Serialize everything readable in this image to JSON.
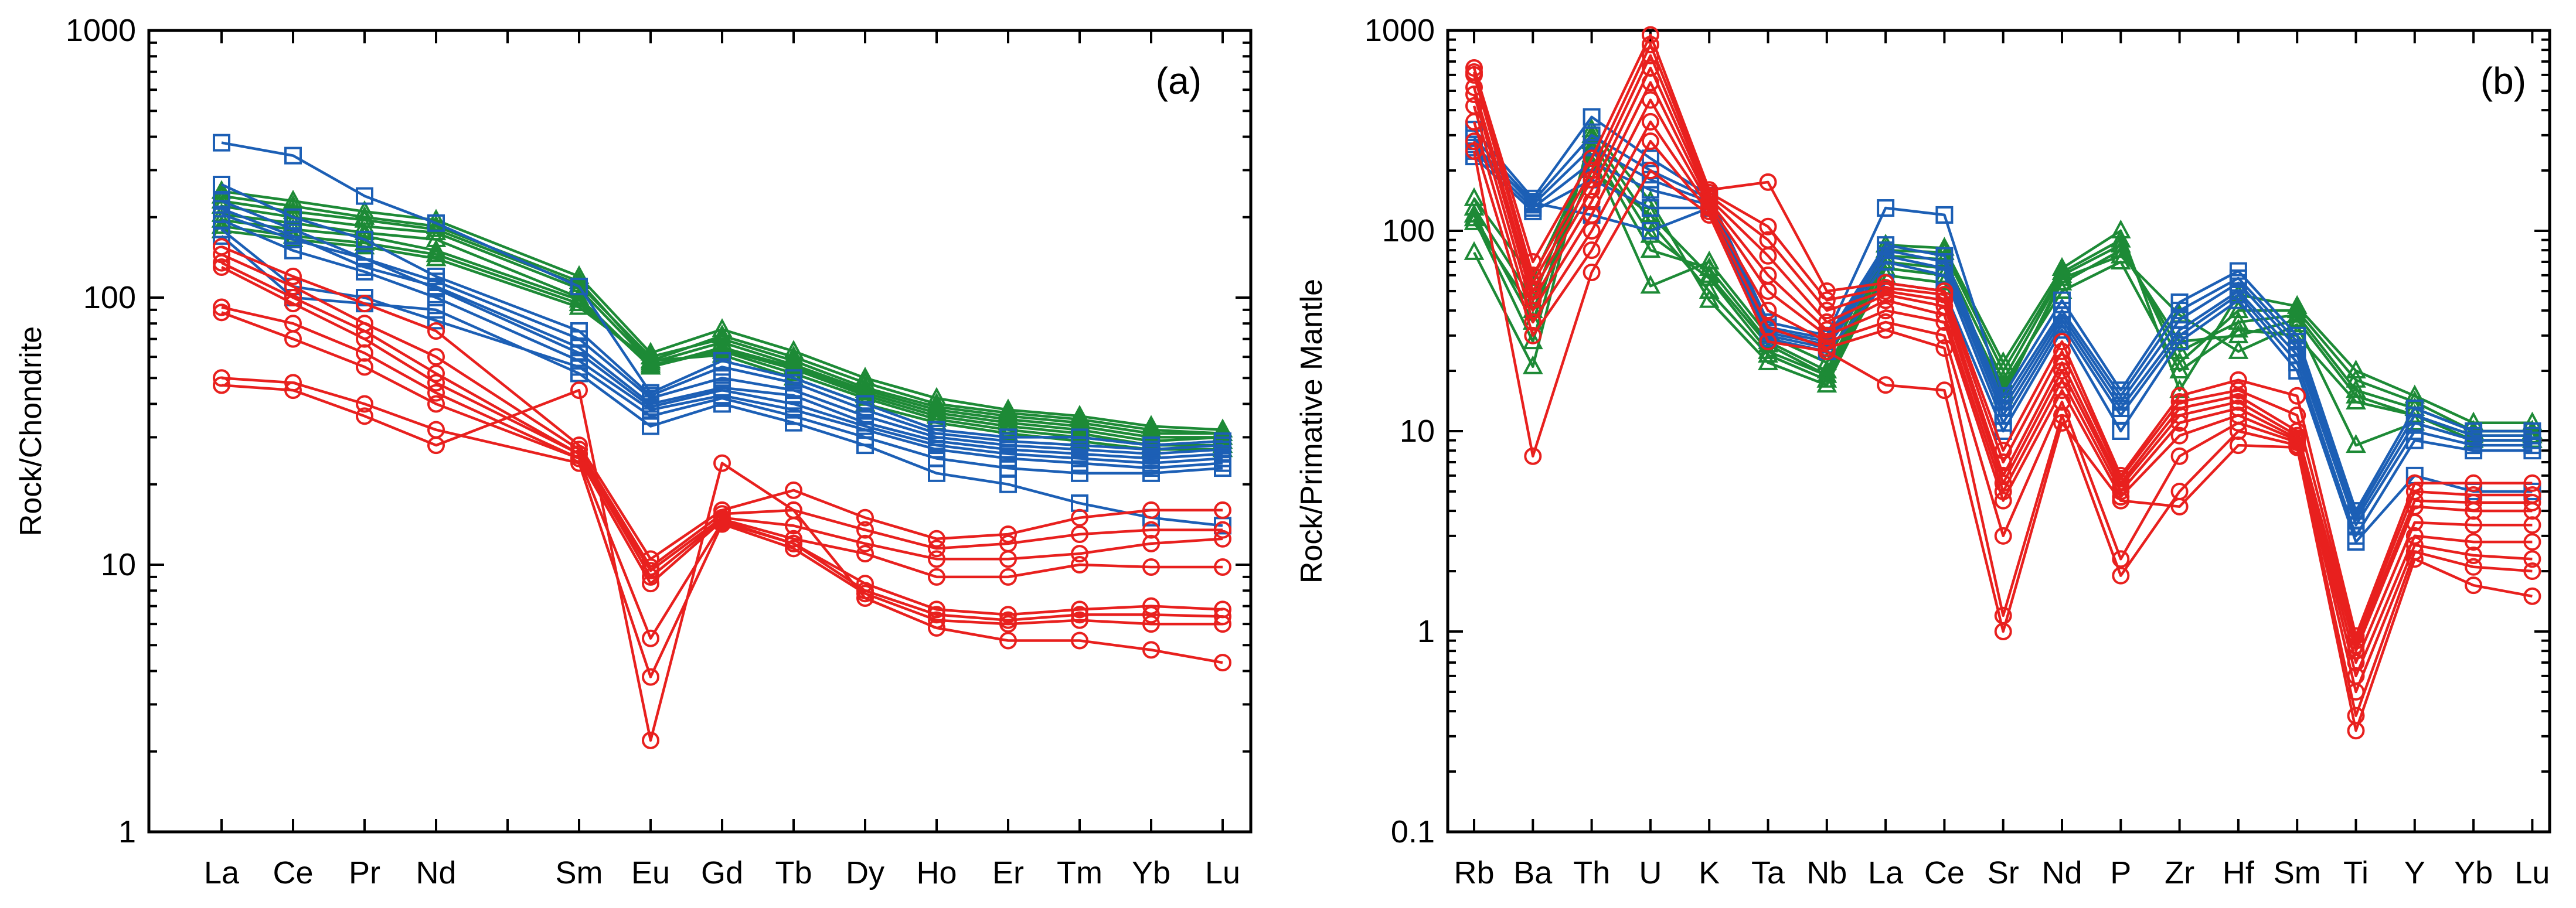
{
  "colors": {
    "red": "#e8201e",
    "blue": "#1c5fb5",
    "green": "#1d8a36"
  },
  "chart_data": [
    {
      "type": "line",
      "panel_label": "(a)",
      "ylabel": "Rock/Chondrite",
      "yscale": "log",
      "ylim": [
        1,
        1000
      ],
      "yticks": [
        "1",
        "10",
        "100",
        "1000"
      ],
      "categories": [
        "La",
        "Ce",
        "Pr",
        "Nd",
        "Sm",
        "Eu",
        "Gd",
        "Tb",
        "Dy",
        "Ho",
        "Er",
        "Tm",
        "Yb",
        "Lu"
      ],
      "x_slots": [
        0,
        1,
        2,
        3,
        5,
        6,
        7,
        8,
        9,
        10,
        11,
        12,
        13,
        14
      ],
      "groups": [
        {
          "name": "green",
          "color_key": "green",
          "marker": "triangle",
          "series": [
            [
              250,
              230,
              210,
              195,
              120,
              62,
              76,
              63,
              50,
              42,
              38,
              36,
              33,
              32
            ],
            [
              240,
              220,
              200,
              185,
              115,
              58,
              72,
              60,
              48,
              40,
              37,
              35,
              32,
              31
            ],
            [
              230,
              210,
              195,
              180,
              112,
              60,
              70,
              58,
              46,
              39,
              36,
              34,
              31,
              31
            ],
            [
              220,
              200,
              185,
              175,
              108,
              57,
              68,
              56,
              45,
              38,
              35,
              33,
              30,
              30
            ],
            [
              205,
              190,
              175,
              165,
              100,
              55,
              65,
              55,
              44,
              37,
              34,
              32,
              29,
              30
            ],
            [
              195,
              180,
              170,
              150,
              98,
              55,
              64,
              54,
              43,
              36,
              33,
              31,
              28,
              29
            ],
            [
              185,
              170,
              160,
              145,
              95,
              56,
              63,
              52,
              42,
              35,
              32,
              30,
              28,
              28
            ],
            [
              178,
              165,
              155,
              140,
              92,
              58,
              61,
              50,
              40,
              34,
              31,
              29,
              27,
              27
            ]
          ]
        },
        {
          "name": "blue",
          "color_key": "blue",
          "marker": "square",
          "series": [
            [
              380,
              340,
              240,
              190,
              110,
              44,
              58,
              50,
              40,
              32,
              30,
              30,
              28,
              29
            ],
            [
              265,
              200,
              165,
              120,
              75,
              43,
              55,
              48,
              38,
              31,
              29,
              28,
              27,
              28
            ],
            [
              230,
              180,
              140,
              115,
              70,
              42,
              50,
              45,
              36,
              30,
              28,
              27,
              26,
              27
            ],
            [
              215,
              170,
              130,
              110,
              65,
              40,
              46,
              43,
              34,
              29,
              27,
              26,
              25,
              26
            ],
            [
              205,
              165,
              140,
              108,
              62,
              39,
              45,
              40,
              33,
              28,
              26,
              25,
              24,
              25
            ],
            [
              195,
              150,
              125,
              100,
              58,
              38,
              43,
              38,
              32,
              27,
              25,
              24,
              23,
              24
            ],
            [
              180,
              110,
              100,
              82,
              55,
              36,
              42,
              36,
              30,
              25,
              23,
              22,
              22,
              23
            ],
            [
              170,
              100,
              95,
              90,
              52,
              33,
              40,
              34,
              28,
              22,
              20,
              17,
              15,
              14
            ]
          ]
        },
        {
          "name": "red",
          "color_key": "red",
          "marker": "circle",
          "series": [
            [
              155,
              120,
              95,
              75,
              28,
              10.5,
              16,
              19,
              15,
              12.5,
              13,
              15,
              16,
              16
            ],
            [
              145,
              110,
              80,
              60,
              27,
              9.8,
              15.5,
              16,
              13.5,
              11.5,
              12,
              13,
              13.5,
              13.5
            ],
            [
              135,
              100,
              75,
              52,
              26,
              9.5,
              15,
              14,
              12,
              10.5,
              10.5,
              11,
              12,
              12.5
            ],
            [
              130,
              95,
              70,
              48,
              26,
              9,
              14.8,
              12.5,
              11,
              9,
              9,
              10,
              9.8,
              9.8
            ],
            [
              92,
              80,
              62,
              44,
              25,
              8.5,
              14.6,
              12,
              8.5,
              6.8,
              6.5,
              6.8,
              7,
              6.8
            ],
            [
              88,
              70,
              55,
              40,
              25,
              5.3,
              14.4,
              12,
              8,
              6.5,
              6.2,
              6.5,
              6.5,
              6.4
            ],
            [
              50,
              48,
              40,
              32,
              24,
              3.8,
              14.2,
              11.5,
              7.8,
              6.2,
              6,
              6.2,
              6,
              6
            ],
            [
              47,
              45,
              36,
              28,
              45,
              2.2,
              24,
              16,
              7.5,
              5.8,
              5.2,
              5.2,
              4.8,
              4.3
            ]
          ]
        }
      ]
    },
    {
      "type": "line",
      "panel_label": "(b)",
      "ylabel": "Rock/Primative Mantle",
      "yscale": "log",
      "ylim": [
        0.1,
        1000
      ],
      "yticks": [
        "0.1",
        "1",
        "10",
        "100",
        "1000"
      ],
      "categories": [
        "Rb",
        "Ba",
        "Th",
        "U",
        "K",
        "Ta",
        "Nb",
        "La",
        "Ce",
        "Sr",
        "Nd",
        "P",
        "Zr",
        "Hf",
        "Sm",
        "Ti",
        "Y",
        "Yb",
        "Lu"
      ],
      "x_slots": [
        0,
        1,
        2,
        3,
        4,
        5,
        6,
        7,
        8,
        9,
        10,
        11,
        12,
        13,
        14,
        15,
        16,
        17,
        18
      ],
      "groups": [
        {
          "name": "green",
          "color_key": "green",
          "marker": "triangle",
          "series": [
            [
              145,
              58,
              240,
              53,
              70,
              30,
              22,
              85,
              82,
              22,
              65,
              100,
              16,
              48,
              42,
              20,
              15,
              11,
              11
            ],
            [
              130,
              45,
              260,
              80,
              65,
              28,
              20,
              80,
              78,
              20,
              62,
              90,
              22,
              40,
              40,
              18,
              14,
              10,
              10
            ],
            [
              120,
              35,
              280,
              95,
              58,
              25,
              19,
              75,
              72,
              18,
              60,
              85,
              25,
              35,
              38,
              16,
              13,
              10,
              10
            ],
            [
              115,
              28,
              300,
              110,
              50,
              24,
              18,
              70,
              65,
              16,
              55,
              80,
              28,
              30,
              36,
              15,
              12,
              9,
              9
            ],
            [
              78,
              21,
              320,
              140,
              45,
              22,
              17,
              65,
              60,
              15,
              58,
              75,
              38,
              25,
              34,
              8.5,
              11,
              9,
              9
            ],
            [
              110,
              40,
              200,
              120,
              60,
              27,
              19,
              60,
              55,
              17,
              50,
              70,
              20,
              32,
              30,
              14,
              12,
              9.5,
              9.5
            ]
          ]
        },
        {
          "name": "blue",
          "color_key": "blue",
          "marker": "square",
          "series": [
            [
              320,
              145,
              370,
              230,
              150,
              35,
              30,
              130,
              120,
              15,
              45,
              16,
              44,
              63,
              30,
              4,
              13,
              10,
              10
            ],
            [
              290,
              140,
              300,
              200,
              145,
              33,
              29,
              85,
              75,
              14,
              40,
              15,
              40,
              58,
              28,
              3.8,
              12,
              9.5,
              9.5
            ],
            [
              270,
              135,
              260,
              180,
              140,
              32,
              28,
              80,
              70,
              13,
              38,
              14,
              36,
              55,
              26,
              3.6,
              11,
              9,
              9
            ],
            [
              250,
              130,
              220,
              160,
              135,
              31,
              27,
              75,
              65,
              12,
              36,
              13,
              32,
              50,
              24,
              3.4,
              10,
              8.5,
              8.5
            ],
            [
              235,
              125,
              180,
              130,
              130,
              30,
              26,
              70,
              60,
              11,
              34,
              12,
              30,
              48,
              22,
              3,
              9,
              8,
              8
            ],
            [
              260,
              138,
              120,
              100,
              130,
              29,
              25,
              55,
              50,
              10,
              32,
              10,
              28,
              45,
              20,
              2.8,
              6,
              5,
              5
            ]
          ]
        },
        {
          "name": "red",
          "color_key": "red",
          "marker": "circle",
          "series": [
            [
              650,
              70,
              230,
              950,
              160,
              175,
              50,
              55,
              50,
              8,
              28,
              6,
              15,
              18,
              15,
              0.95,
              5.5,
              5.5,
              5.5
            ],
            [
              620,
              60,
              200,
              850,
              155,
              105,
              45,
              52,
              48,
              7,
              25,
              5.8,
              14,
              16,
              12,
              0.9,
              5,
              4.8,
              4.8
            ],
            [
              600,
              55,
              180,
              750,
              150,
              90,
              40,
              50,
              45,
              6,
              22,
              5.5,
              13,
              15,
              10,
              0.85,
              4.5,
              4.4,
              4.4
            ],
            [
              520,
              50,
              160,
              650,
              145,
              75,
              35,
              48,
              42,
              5.5,
              20,
              5.3,
              12,
              14,
              9.5,
              0.8,
              4.2,
              4,
              4
            ],
            [
              480,
              45,
              140,
              550,
              140,
              60,
              32,
              45,
              38,
              5,
              18,
              5,
              11,
              13,
              9.2,
              0.7,
              3.5,
              3.4,
              3.4
            ],
            [
              420,
              40,
              120,
              450,
              135,
              50,
              30,
              40,
              35,
              4.5,
              16,
              4.7,
              9.5,
              12,
              9,
              0.6,
              3,
              2.8,
              2.8
            ],
            [
              350,
              35,
              100,
              350,
              130,
              40,
              28,
              35,
              30,
              3,
              14,
              2.3,
              7.5,
              11,
              8.8,
              0.5,
              2.7,
              2.4,
              2.3
            ],
            [
              280,
              30,
              80,
              280,
              125,
              33,
              26,
              32,
              26,
              1.2,
              12,
              1.9,
              5,
              10,
              8.5,
              0.38,
              2.5,
              2.1,
              2
            ],
            [
              250,
              7.5,
              62,
              200,
              120,
              28,
              25,
              17,
              16,
              1,
              11,
              4.5,
              4.2,
              8.5,
              8.3,
              0.32,
              2.3,
              1.7,
              1.5
            ]
          ]
        }
      ]
    }
  ]
}
